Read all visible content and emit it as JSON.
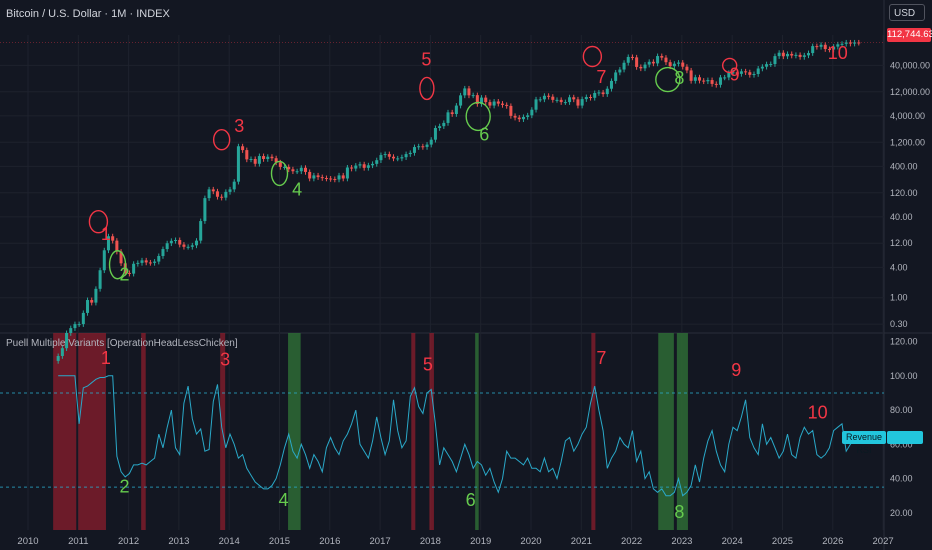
{
  "header": {
    "symbol": "Bitcoin / U.S. Dollar · 1M · INDEX",
    "currency": "USD",
    "last_price": "112,744.63"
  },
  "indicator": {
    "title": "Puell Multiple Variants [OperationHeadLessChicken]",
    "series_label": "Revenue RSI"
  },
  "colors": {
    "up": "#26a69a",
    "down": "#ef5350",
    "rsi_line": "#2aa9c9",
    "red_zone": "#8b1e2c",
    "green_zone": "#2e6b35",
    "annot_red": "#f23645",
    "annot_green": "#66cc4e",
    "grid": "#1e222d"
  },
  "chart_data": [
    {
      "type": "candlestick",
      "scale": "log",
      "ylim": [
        0.2,
        160000
      ],
      "y_ticks": [
        "0.30",
        "1.00",
        "4.00",
        "12.00",
        "40.00",
        "120.00",
        "400.00",
        "1,200.00",
        "4,000.00",
        "12,000.00",
        "40,000.00"
      ],
      "y_tick_values": [
        0.3,
        1,
        4,
        12,
        40,
        120,
        400,
        1200,
        4000,
        12000,
        40000
      ],
      "x_ticks": [
        "2010",
        "2011",
        "2012",
        "2013",
        "2014",
        "2015",
        "2016",
        "2017",
        "2018",
        "2019",
        "2020",
        "2021",
        "2022",
        "2023",
        "2024",
        "2025",
        "2026",
        "2027"
      ],
      "x_tick_years": [
        2010,
        2011,
        2012,
        2013,
        2014,
        2015,
        2016,
        2017,
        2018,
        2019,
        2020,
        2021,
        2022,
        2023,
        2024,
        2025,
        2026,
        2027
      ],
      "x_start": 2010.6,
      "monthly_close": [
        0.07,
        0.1,
        0.2,
        0.25,
        0.3,
        0.3,
        0.5,
        0.9,
        0.8,
        1.5,
        3.5,
        8.7,
        16.5,
        13.5,
        8.2,
        4.8,
        3.1,
        3.0,
        4.7,
        4.9,
        5.5,
        5.0,
        4.9,
        5.2,
        6.7,
        9.2,
        12.0,
        13.4,
        13.9,
        11.3,
        10.2,
        10.2,
        10.9,
        13.5,
        33,
        94,
        140,
        128,
        100,
        96,
        125,
        140,
        199,
        1000,
        840,
        550,
        560,
        450,
        640,
        560,
        620,
        580,
        480,
        390,
        390,
        350,
        320,
        320,
        375,
        310,
        230,
        265,
        245,
        235,
        230,
        225,
        220,
        265,
        230,
        380,
        362,
        415,
        440,
        374,
        420,
        448,
        530,
        670,
        700,
        620,
        575,
        575,
        608,
        700,
        740,
        965,
        1000,
        970,
        1080,
        1350,
        2300,
        2500,
        2900,
        4700,
        4350,
        6400,
        10200,
        14000,
        10200,
        10300,
        6900,
        9200,
        7500,
        6400,
        7700,
        7000,
        6600,
        6300,
        4000,
        3700,
        3440,
        3810,
        4100,
        5300,
        8500,
        8500,
        10000,
        9600,
        8300,
        8300,
        7500,
        7500,
        9350,
        8500,
        6400,
        8600,
        9450,
        9130,
        11350,
        11650,
        10800,
        13800,
        19700,
        29000,
        33100,
        45100,
        58800,
        57700,
        37300,
        35000,
        41500,
        47100,
        43800,
        61300,
        57000,
        46300,
        38500,
        43200,
        45500,
        37700,
        31800,
        19800,
        23300,
        20000,
        19400,
        20500,
        17200,
        16500,
        23100,
        23100,
        28500,
        29200,
        27200,
        30500,
        29300,
        26000,
        27000,
        34700,
        37700,
        42300,
        42600,
        61100,
        71300,
        60600,
        67500,
        62700,
        64600,
        58900,
        63300,
        70200,
        96400,
        93400,
        102400,
        84300,
        82500,
        94200,
        104600,
        107100,
        114000,
        108200,
        114000,
        112700
      ]
    },
    {
      "type": "line",
      "name": "Revenue RSI",
      "ylim": [
        10,
        125
      ],
      "y_ticks": [
        "20.00",
        "40.00",
        "60.00",
        "80.00",
        "100.00",
        "120.00"
      ],
      "y_tick_values": [
        20,
        40,
        60,
        80,
        100,
        120
      ],
      "dashed_levels": [
        90,
        35
      ],
      "x_start": 2010.6,
      "values": [
        100,
        100,
        100,
        100,
        100,
        72,
        93,
        94,
        96,
        98,
        99,
        99,
        100,
        100,
        53,
        44,
        41,
        43,
        48,
        48,
        49,
        48,
        50,
        52,
        66,
        58,
        70,
        80,
        58,
        54,
        84,
        94,
        75,
        66,
        69,
        56,
        57,
        85,
        95,
        70,
        58,
        66,
        60,
        52,
        54,
        46,
        42,
        38,
        36,
        34,
        34,
        36,
        40,
        48,
        58,
        66,
        56,
        52,
        60,
        54,
        46,
        54,
        50,
        44,
        58,
        64,
        58,
        54,
        62,
        66,
        72,
        80,
        60,
        56,
        52,
        62,
        76,
        64,
        54,
        62,
        86,
        68,
        58,
        62,
        88,
        93,
        82,
        78,
        90,
        92,
        72,
        48,
        58,
        54,
        50,
        44,
        52,
        60,
        54,
        46,
        50,
        48,
        42,
        46,
        38,
        32,
        40,
        56,
        52,
        52,
        50,
        48,
        52,
        46,
        46,
        44,
        52,
        44,
        46,
        40,
        50,
        62,
        64,
        56,
        60,
        66,
        70,
        84,
        94,
        80,
        68,
        46,
        52,
        56,
        64,
        60,
        58,
        68,
        50,
        56,
        40,
        44,
        34,
        32,
        34,
        30,
        30,
        32,
        40,
        30,
        32,
        36,
        48,
        38,
        52,
        62,
        68,
        56,
        48,
        44,
        60,
        70,
        68,
        76,
        86,
        64,
        58,
        54,
        72,
        60,
        64,
        58,
        52,
        56,
        66,
        54,
        52,
        64,
        70,
        66,
        68,
        54,
        52,
        54,
        58,
        68,
        70,
        72,
        56,
        60,
        64
      ],
      "red_zones": [
        [
          2010.5,
          2010.96
        ],
        [
          2011.0,
          2011.55
        ],
        [
          2012.25,
          2012.34
        ],
        [
          2013.82,
          2013.92
        ],
        [
          2017.62,
          2017.7
        ],
        [
          2017.98,
          2018.07
        ],
        [
          2021.2,
          2021.28
        ]
      ],
      "green_zones": [
        [
          2015.17,
          2015.42
        ],
        [
          2018.89,
          2018.96
        ],
        [
          2022.53,
          2022.84
        ],
        [
          2022.9,
          2023.12
        ]
      ]
    }
  ],
  "annotations": {
    "price": [
      {
        "label": "1",
        "color": "red",
        "year": 2011.45,
        "value": 14
      },
      {
        "label": "2",
        "color": "green",
        "year": 2011.82,
        "value": 2.2
      },
      {
        "label": "3",
        "color": "red",
        "year": 2014.1,
        "value": 1900
      },
      {
        "label": "4",
        "color": "green",
        "year": 2015.25,
        "value": 105
      },
      {
        "label": "5",
        "color": "red",
        "year": 2017.82,
        "value": 40000
      },
      {
        "label": "6",
        "color": "green",
        "year": 2018.97,
        "value": 1300
      },
      {
        "label": "7",
        "color": "red",
        "year": 2021.3,
        "value": 18000
      },
      {
        "label": "8",
        "color": "green",
        "year": 2022.85,
        "value": 17000
      },
      {
        "label": "9",
        "color": "red",
        "year": 2023.95,
        "value": 20000
      },
      {
        "label": "10",
        "color": "red",
        "year": 2025.9,
        "value": 54000
      }
    ],
    "rsi": [
      {
        "label": "1",
        "color": "red",
        "year": 2011.45,
        "value": 107
      },
      {
        "label": "2",
        "color": "green",
        "year": 2011.82,
        "value": 32
      },
      {
        "label": "3",
        "color": "red",
        "year": 2013.82,
        "value": 106
      },
      {
        "label": "4",
        "color": "green",
        "year": 2014.98,
        "value": 24
      },
      {
        "label": "5",
        "color": "red",
        "year": 2017.85,
        "value": 103
      },
      {
        "label": "6",
        "color": "green",
        "year": 2018.7,
        "value": 24
      },
      {
        "label": "7",
        "color": "red",
        "year": 2021.3,
        "value": 107
      },
      {
        "label": "8",
        "color": "green",
        "year": 2022.85,
        "value": 17
      },
      {
        "label": "9",
        "color": "red",
        "year": 2023.98,
        "value": 100
      },
      {
        "label": "10",
        "color": "red",
        "year": 2025.5,
        "value": 75
      }
    ],
    "circles": [
      {
        "color": "red",
        "year": 2011.4,
        "value": 32,
        "rx": 9,
        "ry": 11
      },
      {
        "color": "green",
        "year": 2011.78,
        "value": 4.5,
        "rx": 8,
        "ry": 14
      },
      {
        "color": "red",
        "year": 2013.85,
        "value": 1350,
        "rx": 8,
        "ry": 10
      },
      {
        "color": "green",
        "year": 2015.0,
        "value": 290,
        "rx": 8,
        "ry": 12
      },
      {
        "color": "red",
        "year": 2017.93,
        "value": 14000,
        "rx": 7,
        "ry": 11
      },
      {
        "color": "green",
        "year": 2018.95,
        "value": 3900,
        "rx": 12,
        "ry": 14
      },
      {
        "color": "red",
        "year": 2021.22,
        "value": 60000,
        "rx": 9,
        "ry": 10
      },
      {
        "color": "green",
        "year": 2022.72,
        "value": 21000,
        "rx": 12,
        "ry": 12
      },
      {
        "color": "red",
        "year": 2023.95,
        "value": 40000,
        "rx": 7,
        "ry": 7
      }
    ]
  }
}
